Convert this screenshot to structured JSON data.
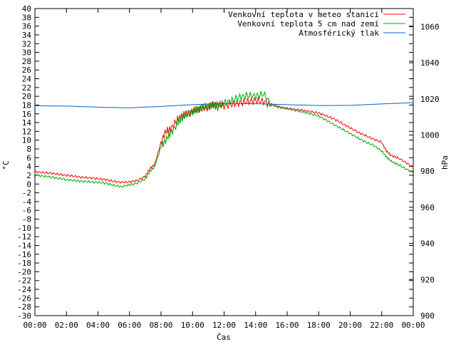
{
  "chart_data": {
    "type": "line",
    "xlabel": "Čas",
    "ylabel": "°C",
    "y2label": "hPa",
    "x_ticks": [
      "00:00",
      "02:00",
      "04:00",
      "06:00",
      "08:00",
      "10:00",
      "12:00",
      "14:00",
      "16:00",
      "18:00",
      "20:00",
      "22:00",
      "00:00"
    ],
    "xlim_hours": [
      0,
      24
    ],
    "ylim": [
      -30,
      40
    ],
    "y_tick_step": 2,
    "y2lim": [
      900,
      1070
    ],
    "y2_ticks": [
      900,
      920,
      940,
      960,
      980,
      1000,
      1020,
      1040,
      1060
    ],
    "grid": false,
    "legend_position": "top-right",
    "series": [
      {
        "name": "Venkovní teplota v meteo stanici",
        "color": "#ff0000",
        "axis": "left",
        "x": [
          0,
          0.5,
          1,
          1.5,
          2,
          2.5,
          3,
          3.5,
          4,
          4.5,
          5,
          5.5,
          6,
          6.5,
          7,
          7.3,
          7.6,
          8,
          8.3,
          8.6,
          9,
          9.3,
          9.6,
          10,
          10.3,
          10.6,
          11,
          11.3,
          11.6,
          12,
          12.5,
          13,
          13.5,
          14,
          14.5,
          15,
          15.5,
          16,
          16.5,
          17,
          17.5,
          18,
          18.5,
          19,
          19.5,
          20,
          20.5,
          21,
          21.5,
          22,
          22.3,
          22.6,
          23,
          23.5,
          24
        ],
        "y": [
          2.8,
          2.6,
          2.5,
          2.2,
          2.0,
          1.8,
          1.5,
          1.4,
          1.2,
          1.0,
          0.6,
          0.4,
          0.5,
          0.8,
          1.8,
          3.5,
          4.5,
          9.5,
          12.0,
          12.5,
          14.5,
          15.5,
          16.0,
          16.5,
          17.0,
          17.2,
          17.5,
          18.0,
          18.2,
          17.8,
          18.2,
          18.5,
          18.8,
          19.0,
          18.8,
          18.0,
          17.5,
          17.2,
          17.0,
          16.8,
          16.5,
          16.2,
          15.5,
          14.8,
          13.8,
          12.8,
          11.8,
          11.0,
          10.2,
          9.5,
          7.5,
          6.5,
          6.0,
          5.0,
          3.8
        ]
      },
      {
        "name": "Venkovní teplota 5 cm nad zemí",
        "color": "#00aa00",
        "axis": "left",
        "x": [
          0,
          0.5,
          1,
          1.5,
          2,
          2.5,
          3,
          3.5,
          4,
          4.5,
          5,
          5.5,
          6,
          6.5,
          7,
          7.3,
          7.6,
          8,
          8.3,
          8.6,
          9,
          9.3,
          9.6,
          10,
          10.3,
          10.6,
          11,
          11.3,
          11.6,
          12,
          12.5,
          13,
          13.5,
          14,
          14.5,
          15,
          15.5,
          16,
          16.5,
          17,
          17.5,
          18,
          18.5,
          19,
          19.5,
          20,
          20.5,
          21,
          21.5,
          22,
          22.3,
          22.6,
          23,
          23.5,
          24
        ],
        "y": [
          2.1,
          1.8,
          1.6,
          1.3,
          1.0,
          0.8,
          0.6,
          0.5,
          0.4,
          0.2,
          -0.3,
          -0.6,
          -0.2,
          0.2,
          1.2,
          2.8,
          4.0,
          8.5,
          10.0,
          11.5,
          13.5,
          15.0,
          15.8,
          16.5,
          17.0,
          17.5,
          17.8,
          18.0,
          17.5,
          18.5,
          19.0,
          19.8,
          20.2,
          20.0,
          20.5,
          18.2,
          17.6,
          17.2,
          16.8,
          16.4,
          16.0,
          15.5,
          14.5,
          13.5,
          12.5,
          11.5,
          10.5,
          9.5,
          8.8,
          7.5,
          6.2,
          5.2,
          4.5,
          3.5,
          2.6
        ]
      },
      {
        "name": "Atmosférický tlak",
        "color": "#0066cc",
        "axis": "right",
        "x": [
          0,
          2,
          4,
          6,
          8,
          10,
          12,
          14,
          16,
          18,
          20,
          22,
          24
        ],
        "y": [
          1016.2,
          1016.0,
          1015.4,
          1015.0,
          1015.8,
          1016.8,
          1017.4,
          1017.3,
          1016.8,
          1016.3,
          1016.4,
          1017.2,
          1017.9
        ]
      }
    ]
  }
}
